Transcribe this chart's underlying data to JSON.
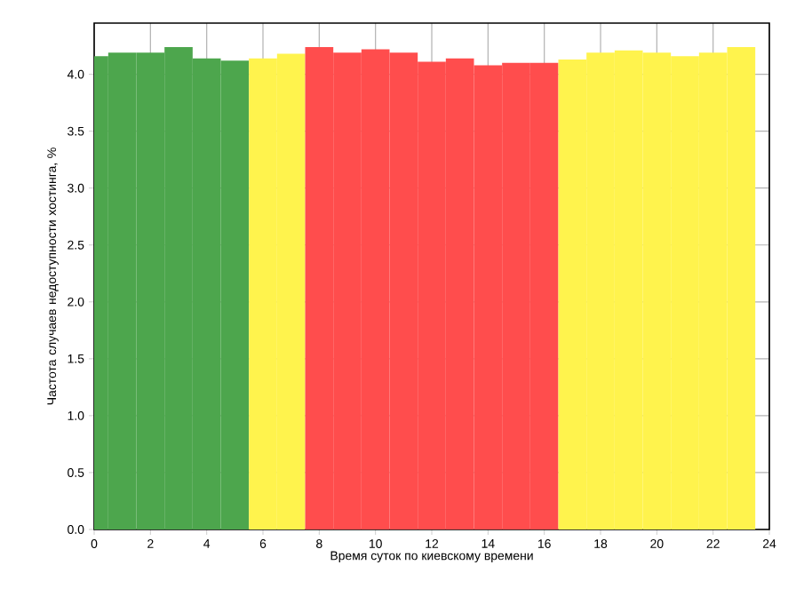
{
  "chart_data": {
    "type": "bar",
    "xlabel": "Время суток по киевскому времени",
    "ylabel": "Частота случаев недоступности хостинга, %",
    "x": [
      0,
      1,
      2,
      3,
      4,
      5,
      6,
      7,
      8,
      9,
      10,
      11,
      12,
      13,
      14,
      15,
      16,
      17,
      18,
      19,
      20,
      21,
      22,
      23
    ],
    "values": [
      4.16,
      4.19,
      4.19,
      4.24,
      4.14,
      4.12,
      4.14,
      4.18,
      4.24,
      4.19,
      4.22,
      4.19,
      4.11,
      4.14,
      4.08,
      4.1,
      4.1,
      4.13,
      4.19,
      4.21,
      4.19,
      4.16,
      4.19,
      4.24
    ],
    "colors": [
      "#4da64d",
      "#4da64d",
      "#4da64d",
      "#4da64d",
      "#4da64d",
      "#4da64d",
      "#fff34d",
      "#fff34d",
      "#ff4d4d",
      "#ff4d4d",
      "#ff4d4d",
      "#ff4d4d",
      "#ff4d4d",
      "#ff4d4d",
      "#ff4d4d",
      "#ff4d4d",
      "#ff4d4d",
      "#fff34d",
      "#fff34d",
      "#fff34d",
      "#fff34d",
      "#fff34d",
      "#fff34d",
      "#fff34d"
    ],
    "xlim": [
      0,
      24
    ],
    "ylim": [
      0,
      4.45
    ],
    "xticks": [
      0,
      2,
      4,
      6,
      8,
      10,
      12,
      14,
      16,
      18,
      20,
      22,
      24
    ],
    "yticks": [
      {
        "value": 0,
        "label": "0.0"
      },
      {
        "value": 0.5,
        "label": "0.5"
      },
      {
        "value": 1,
        "label": "1.0"
      },
      {
        "value": 1.5,
        "label": "1.5"
      },
      {
        "value": 2,
        "label": "2.0"
      },
      {
        "value": 2.5,
        "label": "2.5"
      },
      {
        "value": 3,
        "label": "3.0"
      },
      {
        "value": 3.5,
        "label": "3.5"
      },
      {
        "value": 4,
        "label": "4.0"
      }
    ],
    "grid": true
  }
}
